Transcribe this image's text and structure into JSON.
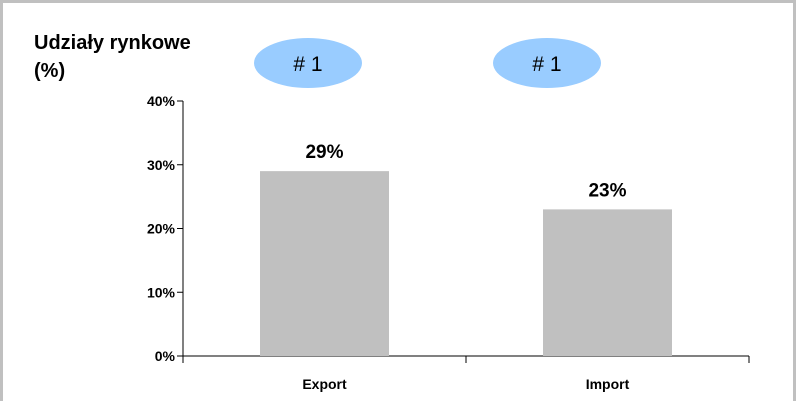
{
  "chart_data": {
    "type": "bar",
    "title": "Udziały rynkowe",
    "title_line2": "(%)",
    "categories": [
      "Export",
      "Import"
    ],
    "values": [
      29,
      23
    ],
    "data_labels": [
      "29%",
      "23%"
    ],
    "ylim": [
      0,
      40
    ],
    "yticks": [
      0,
      10,
      20,
      30,
      40
    ],
    "ytick_labels": [
      "0%",
      "10%",
      "20%",
      "30%",
      "40%"
    ],
    "xlabel": "",
    "ylabel": "",
    "grid": false,
    "bar_color": "#c0c0c0",
    "badges": [
      {
        "label": "# 1",
        "color": "#99ccff"
      },
      {
        "label": "# 1",
        "color": "#99ccff"
      }
    ]
  }
}
